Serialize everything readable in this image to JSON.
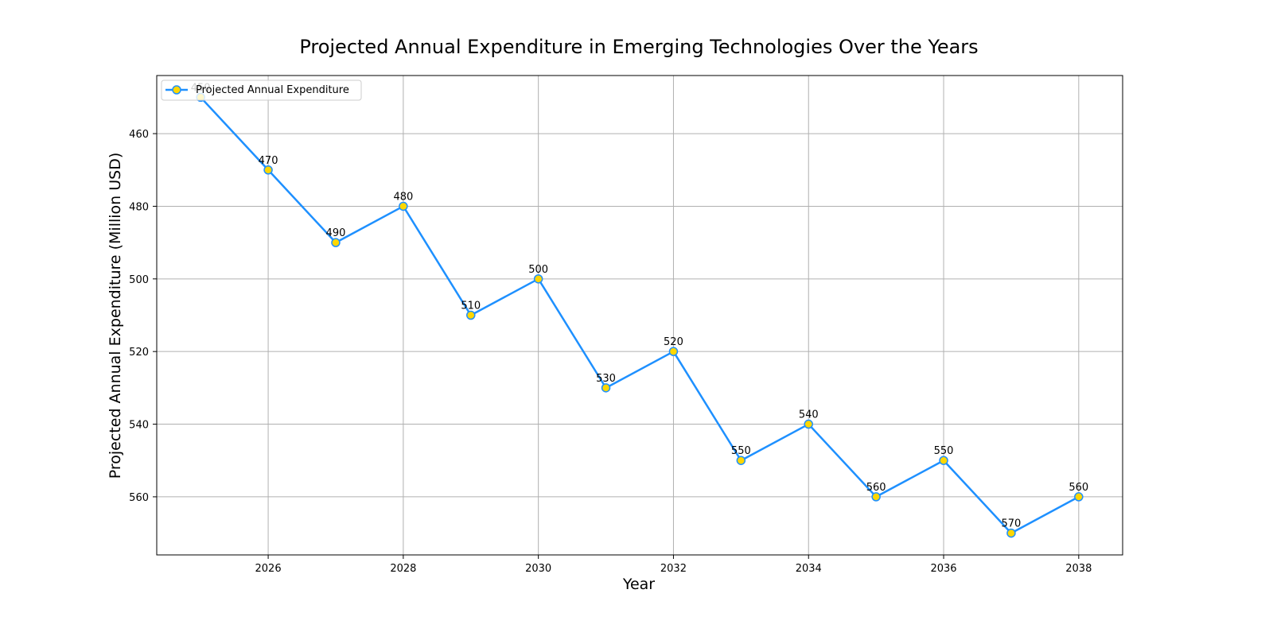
{
  "chart_data": {
    "type": "line",
    "title": "Projected Annual Expenditure in Emerging Technologies Over the Years",
    "xlabel": "Year",
    "ylabel": "Projected Annual Expenditure (Million USD)",
    "x": [
      2025,
      2026,
      2027,
      2028,
      2029,
      2030,
      2031,
      2032,
      2033,
      2034,
      2035,
      2036,
      2037,
      2038
    ],
    "series": [
      {
        "name": "Projected Annual Expenditure",
        "values": [
          450,
          470,
          490,
          480,
          510,
          500,
          530,
          520,
          550,
          540,
          560,
          550,
          570,
          560
        ]
      }
    ],
    "xlim": [
      2024.35,
      2038.65
    ],
    "ylim": [
      444,
      576
    ],
    "y_inverted": true,
    "x_ticks": [
      2026,
      2028,
      2030,
      2032,
      2034,
      2036,
      2038
    ],
    "y_ticks": [
      460,
      480,
      500,
      520,
      540,
      560
    ],
    "grid": true,
    "legend_position": "upper-left",
    "colors": {
      "line": "#1e90ff",
      "marker_fill": "#ffd700",
      "marker_edge": "#1e90ff"
    },
    "marker": "circle"
  }
}
